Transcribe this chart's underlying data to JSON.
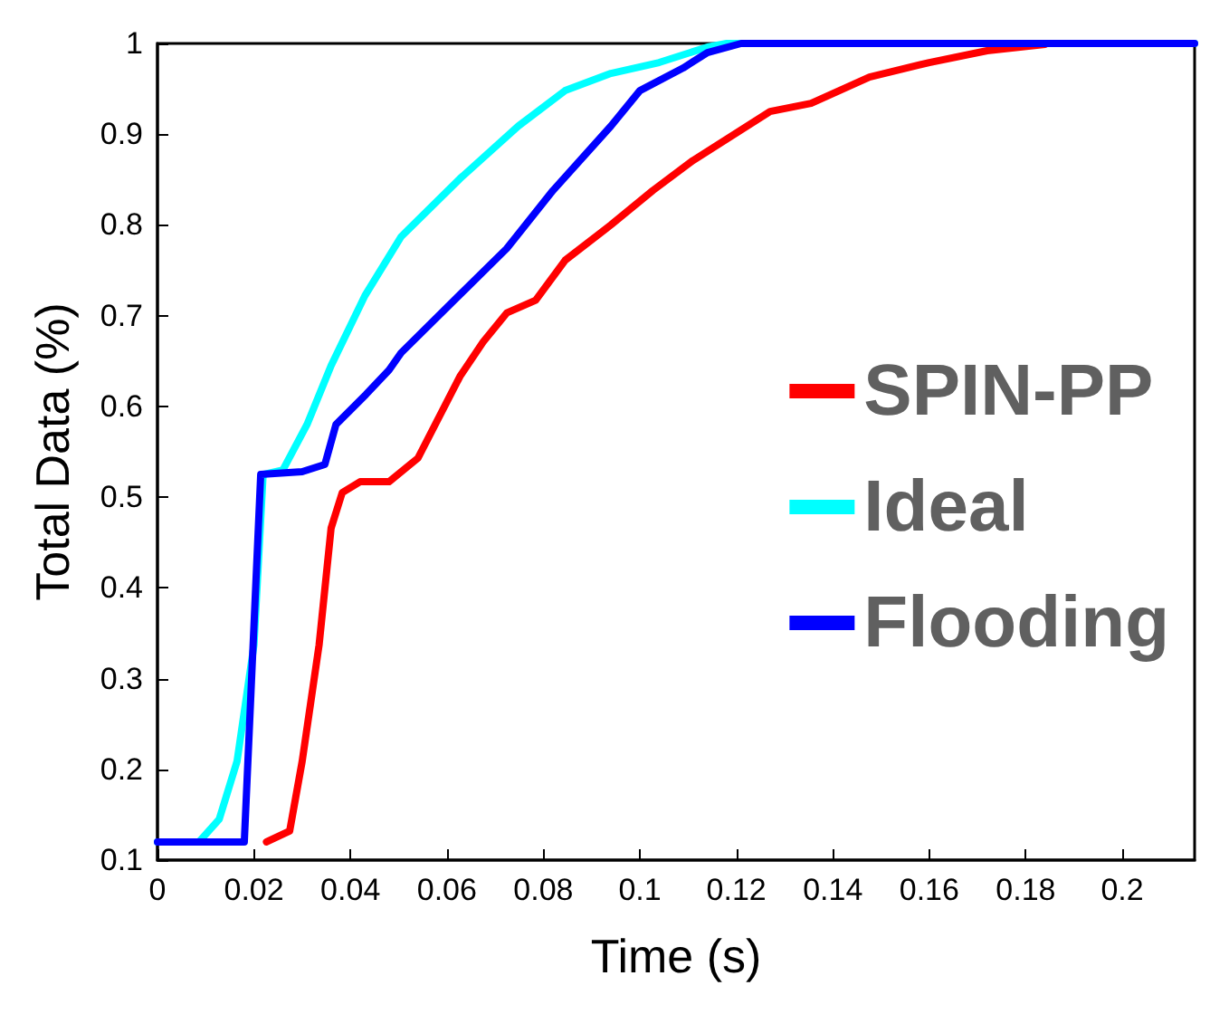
{
  "chart_data": {
    "type": "line",
    "xlabel": "Time (s)",
    "ylabel": "Total Data (%)",
    "xlim": [
      0,
      0.215
    ],
    "ylim": [
      0.1,
      1
    ],
    "xticks": [
      0,
      0.02,
      0.04,
      0.06,
      0.08,
      0.1,
      0.12,
      0.14,
      0.16,
      0.18,
      0.2
    ],
    "yticks": [
      0.1,
      0.2,
      0.3,
      0.4,
      0.5,
      0.6,
      0.7,
      0.8,
      0.9,
      1
    ],
    "grid": false,
    "legend": "right",
    "marker": "none",
    "line_style": "solid",
    "series": [
      {
        "name": "SPIN-PP",
        "color": "#ff0000",
        "x": [
          0.0226,
          0.0274,
          0.03,
          0.0335,
          0.036,
          0.0383,
          0.042,
          0.048,
          0.054,
          0.0627,
          0.0675,
          0.0724,
          0.0784,
          0.0845,
          0.094,
          0.1027,
          0.111,
          0.127,
          0.1355,
          0.1476,
          0.16,
          0.172,
          0.184
        ],
        "values": [
          0.12,
          0.132,
          0.209,
          0.337,
          0.466,
          0.505,
          0.517,
          0.517,
          0.543,
          0.633,
          0.671,
          0.703,
          0.717,
          0.761,
          0.8,
          0.838,
          0.871,
          0.925,
          0.934,
          0.963,
          0.979,
          0.992,
          0.999
        ]
      },
      {
        "name": "Ideal",
        "color": "#00ffff",
        "x": [
          0,
          0.0086,
          0.0128,
          0.0165,
          0.02,
          0.0219,
          0.026,
          0.031,
          0.036,
          0.043,
          0.0505,
          0.0627,
          0.0748,
          0.0845,
          0.094,
          0.104,
          0.114,
          0.118,
          0.215
        ],
        "values": [
          0.12,
          0.12,
          0.145,
          0.209,
          0.337,
          0.525,
          0.53,
          0.58,
          0.645,
          0.722,
          0.787,
          0.851,
          0.909,
          0.948,
          0.967,
          0.979,
          0.996,
          1,
          1
        ]
      },
      {
        "name": "Flooding",
        "color": "#0000ff",
        "x": [
          0,
          0.018,
          0.0214,
          0.03,
          0.0347,
          0.037,
          0.0432,
          0.048,
          0.0505,
          0.064,
          0.0724,
          0.082,
          0.094,
          0.1,
          0.109,
          0.114,
          0.121,
          0.215
        ],
        "values": [
          0.12,
          0.12,
          0.525,
          0.528,
          0.536,
          0.58,
          0.613,
          0.64,
          0.659,
          0.73,
          0.774,
          0.838,
          0.909,
          0.948,
          0.973,
          0.99,
          1,
          1
        ]
      }
    ]
  }
}
